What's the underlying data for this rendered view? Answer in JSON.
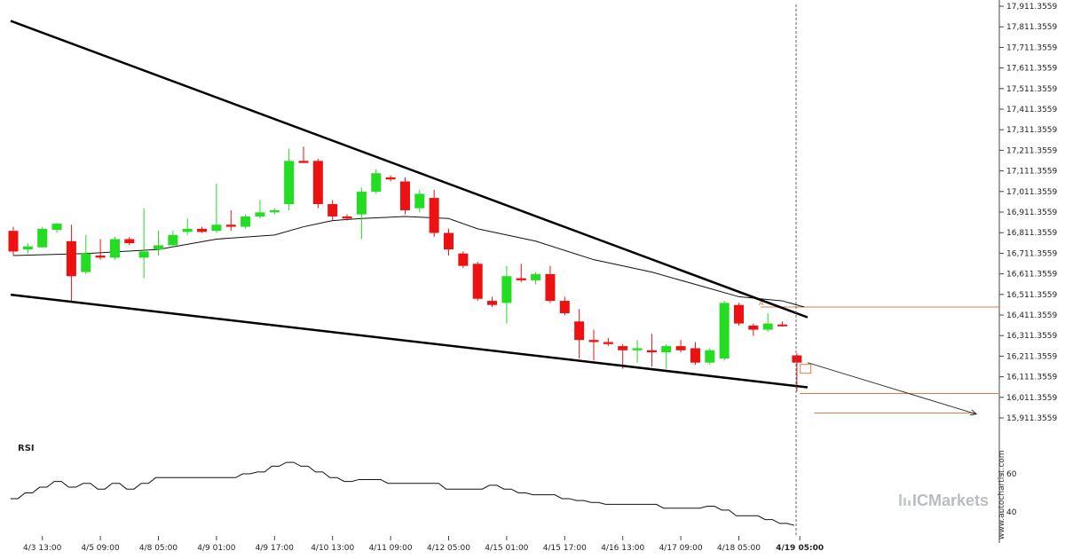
{
  "chart_data": {
    "type": "candlestick",
    "y_ticks": [
      "17,911.3559",
      "17,811.3559",
      "17,711.3559",
      "17,611.3559",
      "17,511.3559",
      "17,411.3559",
      "17,311.3559",
      "17,211.3559",
      "17,111.3559",
      "17,011.3559",
      "16,911.3559",
      "16,811.3559",
      "16,711.3559",
      "16,611.3559",
      "16,511.3559",
      "16,411.3559",
      "16,311.3559",
      "16,211.3559",
      "16,111.3559",
      "16,011.3559",
      "15,911.3559"
    ],
    "ylim": [
      15870,
      17930
    ],
    "x_ticks": [
      "4/3 13:00",
      "4/5 09:00",
      "4/8 05:00",
      "4/9 01:00",
      "4/9 17:00",
      "4/10 13:00",
      "4/11 09:00",
      "4/12 05:00",
      "4/15 01:00",
      "4/15 17:00",
      "4/16 13:00",
      "4/17 09:00",
      "4/18 05:00",
      "4/19 05:00"
    ],
    "x_tick_index": [
      2,
      6,
      10,
      14,
      18,
      22,
      26,
      30,
      34,
      38,
      42,
      46,
      50,
      54.2
    ],
    "highlight_tick": "4/19 05:00",
    "candles": [
      {
        "o": 16820,
        "h": 16840,
        "l": 16700,
        "c": 16720
      },
      {
        "o": 16730,
        "h": 16760,
        "l": 16710,
        "c": 16745
      },
      {
        "o": 16740,
        "h": 16840,
        "l": 16740,
        "c": 16830
      },
      {
        "o": 16825,
        "h": 16860,
        "l": 16810,
        "c": 16855
      },
      {
        "o": 16770,
        "h": 16850,
        "l": 16480,
        "c": 16600
      },
      {
        "o": 16620,
        "h": 16800,
        "l": 16610,
        "c": 16710
      },
      {
        "o": 16700,
        "h": 16780,
        "l": 16680,
        "c": 16690
      },
      {
        "o": 16690,
        "h": 16790,
        "l": 16680,
        "c": 16780
      },
      {
        "o": 16780,
        "h": 16790,
        "l": 16750,
        "c": 16760
      },
      {
        "o": 16690,
        "h": 16930,
        "l": 16590,
        "c": 16720
      },
      {
        "o": 16730,
        "h": 16820,
        "l": 16700,
        "c": 16750
      },
      {
        "o": 16750,
        "h": 16820,
        "l": 16740,
        "c": 16800
      },
      {
        "o": 16815,
        "h": 16880,
        "l": 16800,
        "c": 16830
      },
      {
        "o": 16830,
        "h": 16840,
        "l": 16810,
        "c": 16815
      },
      {
        "o": 16820,
        "h": 17050,
        "l": 16810,
        "c": 16850
      },
      {
        "o": 16850,
        "h": 16920,
        "l": 16820,
        "c": 16840
      },
      {
        "o": 16840,
        "h": 16900,
        "l": 16830,
        "c": 16890
      },
      {
        "o": 16890,
        "h": 16970,
        "l": 16880,
        "c": 16910
      },
      {
        "o": 16910,
        "h": 16930,
        "l": 16900,
        "c": 16920
      },
      {
        "o": 16950,
        "h": 17220,
        "l": 16920,
        "c": 17160
      },
      {
        "o": 17160,
        "h": 17230,
        "l": 17150,
        "c": 17150
      },
      {
        "o": 17160,
        "h": 17170,
        "l": 16930,
        "c": 16950
      },
      {
        "o": 16950,
        "h": 16970,
        "l": 16870,
        "c": 16890
      },
      {
        "o": 16890,
        "h": 16900,
        "l": 16870,
        "c": 16880
      },
      {
        "o": 16900,
        "h": 17030,
        "l": 16780,
        "c": 17010
      },
      {
        "o": 17010,
        "h": 17120,
        "l": 17000,
        "c": 17100
      },
      {
        "o": 17080,
        "h": 17090,
        "l": 17060,
        "c": 17070
      },
      {
        "o": 17060,
        "h": 17080,
        "l": 16900,
        "c": 16920
      },
      {
        "o": 16930,
        "h": 17020,
        "l": 16910,
        "c": 17000
      },
      {
        "o": 16980,
        "h": 17020,
        "l": 16790,
        "c": 16810
      },
      {
        "o": 16810,
        "h": 16830,
        "l": 16700,
        "c": 16730
      },
      {
        "o": 16710,
        "h": 16720,
        "l": 16640,
        "c": 16650
      },
      {
        "o": 16660,
        "h": 16670,
        "l": 16480,
        "c": 16490
      },
      {
        "o": 16480,
        "h": 16500,
        "l": 16450,
        "c": 16460
      },
      {
        "o": 16470,
        "h": 16650,
        "l": 16370,
        "c": 16600
      },
      {
        "o": 16590,
        "h": 16660,
        "l": 16570,
        "c": 16580
      },
      {
        "o": 16580,
        "h": 16620,
        "l": 16560,
        "c": 16610
      },
      {
        "o": 16610,
        "h": 16650,
        "l": 16470,
        "c": 16480
      },
      {
        "o": 16480,
        "h": 16500,
        "l": 16410,
        "c": 16420
      },
      {
        "o": 16380,
        "h": 16440,
        "l": 16200,
        "c": 16290
      },
      {
        "o": 16290,
        "h": 16340,
        "l": 16190,
        "c": 16280
      },
      {
        "o": 16280,
        "h": 16300,
        "l": 16260,
        "c": 16270
      },
      {
        "o": 16260,
        "h": 16270,
        "l": 16150,
        "c": 16240
      },
      {
        "o": 16240,
        "h": 16290,
        "l": 16180,
        "c": 16250
      },
      {
        "o": 16240,
        "h": 16320,
        "l": 16160,
        "c": 16230
      },
      {
        "o": 16230,
        "h": 16270,
        "l": 16150,
        "c": 16260
      },
      {
        "o": 16260,
        "h": 16290,
        "l": 16230,
        "c": 16240
      },
      {
        "o": 16250,
        "h": 16280,
        "l": 16170,
        "c": 16180
      },
      {
        "o": 16180,
        "h": 16250,
        "l": 16170,
        "c": 16240
      },
      {
        "o": 16200,
        "h": 16480,
        "l": 16190,
        "c": 16470
      },
      {
        "o": 16460,
        "h": 16470,
        "l": 16360,
        "c": 16370
      },
      {
        "o": 16360,
        "h": 16370,
        "l": 16310,
        "c": 16340
      },
      {
        "o": 16340,
        "h": 16420,
        "l": 16330,
        "c": 16370
      },
      {
        "o": 16365,
        "h": 16380,
        "l": 16355,
        "c": 16362
      },
      {
        "o": 16215,
        "h": 16225,
        "l": 16040,
        "c": 16180
      }
    ],
    "ma": [
      [
        0,
        16700
      ],
      [
        5,
        16710
      ],
      [
        10,
        16730
      ],
      [
        14,
        16780
      ],
      [
        18,
        16800
      ],
      [
        20,
        16840
      ],
      [
        22,
        16870
      ],
      [
        24,
        16880
      ],
      [
        27,
        16890
      ],
      [
        30,
        16880
      ],
      [
        32,
        16830
      ],
      [
        36,
        16770
      ],
      [
        40,
        16680
      ],
      [
        44,
        16620
      ],
      [
        48,
        16540
      ],
      [
        50,
        16500
      ],
      [
        53,
        16480
      ],
      [
        54.5,
        16450
      ]
    ],
    "upper_trendline": [
      [
        0,
        17840
      ],
      [
        54,
        16400
      ]
    ],
    "lower_trendline": [
      [
        0,
        16510
      ],
      [
        54,
        16060
      ]
    ],
    "resistance_line": {
      "x_start": 51.5,
      "value": 16450
    },
    "target_levels": [
      16030,
      15935
    ],
    "projection": [
      [
        54,
        16180
      ],
      [
        58,
        15930
      ]
    ],
    "current_box": {
      "x": 54.6,
      "y": 16150
    },
    "marker_label": "A",
    "rsi_panel": {
      "title": "RSI",
      "ticks": [
        "60",
        "40"
      ],
      "tick_values": [
        60,
        40
      ],
      "ylim": [
        30,
        80
      ],
      "values": [
        47,
        50,
        53,
        56,
        53,
        55,
        52,
        55,
        52,
        55,
        58,
        58,
        58,
        58,
        58,
        58,
        60,
        61,
        64,
        66,
        64,
        61,
        58,
        56,
        57,
        57,
        55,
        55,
        55,
        55,
        52,
        52,
        52,
        54,
        52,
        50,
        49,
        49,
        47,
        46,
        45,
        44,
        44,
        44,
        44,
        42,
        42,
        42,
        43,
        41,
        38,
        38,
        36,
        34,
        33
      ]
    },
    "watermark": "www.autochartist.com",
    "brand": "ICMarkets",
    "colors": {
      "up": "#22dd22",
      "down": "#ee1111",
      "trend": "#000000",
      "ma": "#111111",
      "level": "#e07a4a",
      "projection": "#333333"
    }
  }
}
